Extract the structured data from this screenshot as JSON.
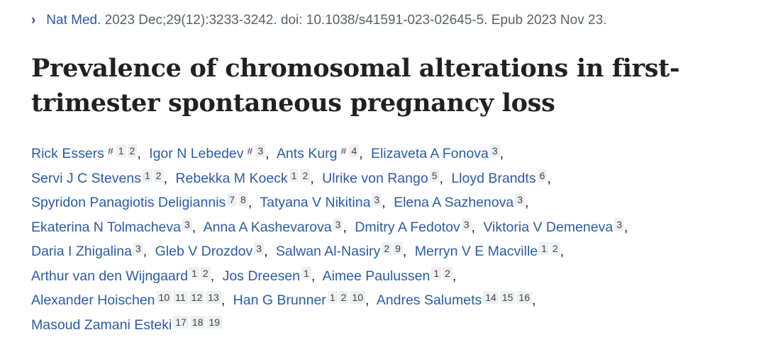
{
  "citation": {
    "journal": "Nat Med.",
    "details": "2023 Dec;29(12):3233-3242. doi: 10.1038/s41591-023-02645-5. Epub 2023 Nov 23."
  },
  "title": [
    "Prevalence of chromosomal alterations in first-",
    "trimester spontaneous pregnancy loss"
  ],
  "separator": ",",
  "author_lines": [
    [
      {
        "name": "Rick Essers",
        "marks": [
          "#",
          "1",
          "2"
        ]
      },
      {
        "name": "Igor N Lebedev",
        "marks": [
          "#",
          "3"
        ]
      },
      {
        "name": "Ants Kurg",
        "marks": [
          "#",
          "4"
        ]
      },
      {
        "name": "Elizaveta A Fonova",
        "marks": [
          "3"
        ]
      }
    ],
    [
      {
        "name": "Servi J C Stevens",
        "marks": [
          "1",
          "2"
        ]
      },
      {
        "name": "Rebekka M Koeck",
        "marks": [
          "1",
          "2"
        ]
      },
      {
        "name": "Ulrike von Rango",
        "marks": [
          "5"
        ]
      },
      {
        "name": "Lloyd Brandts",
        "marks": [
          "6"
        ]
      }
    ],
    [
      {
        "name": "Spyridon Panagiotis Deligiannis",
        "marks": [
          "7",
          "8"
        ]
      },
      {
        "name": "Tatyana V Nikitina",
        "marks": [
          "3"
        ]
      },
      {
        "name": "Elena A Sazhenova",
        "marks": [
          "3"
        ]
      }
    ],
    [
      {
        "name": "Ekaterina N Tolmacheva",
        "marks": [
          "3"
        ]
      },
      {
        "name": "Anna A Kashevarova",
        "marks": [
          "3"
        ]
      },
      {
        "name": "Dmitry A Fedotov",
        "marks": [
          "3"
        ]
      },
      {
        "name": "Viktoria V Demeneva",
        "marks": [
          "3"
        ]
      }
    ],
    [
      {
        "name": "Daria I Zhigalina",
        "marks": [
          "3"
        ]
      },
      {
        "name": "Gleb V Drozdov",
        "marks": [
          "3"
        ]
      },
      {
        "name": "Salwan Al-Nasiry",
        "marks": [
          "2",
          "9"
        ]
      },
      {
        "name": "Merryn V E Macville",
        "marks": [
          "1",
          "2"
        ]
      }
    ],
    [
      {
        "name": "Arthur van den Wijngaard",
        "marks": [
          "1",
          "2"
        ]
      },
      {
        "name": "Jos Dreesen",
        "marks": [
          "1"
        ]
      },
      {
        "name": "Aimee Paulussen",
        "marks": [
          "1",
          "2"
        ]
      }
    ],
    [
      {
        "name": "Alexander Hoischen",
        "marks": [
          "10",
          "11",
          "12",
          "13"
        ]
      },
      {
        "name": "Han G Brunner",
        "marks": [
          "1",
          "2",
          "10"
        ]
      },
      {
        "name": "Andres Salumets",
        "marks": [
          "14",
          "15",
          "16"
        ]
      }
    ],
    [
      {
        "name": "Masoud Zamani Esteki",
        "marks": [
          "17",
          "18",
          "19"
        ]
      }
    ]
  ]
}
